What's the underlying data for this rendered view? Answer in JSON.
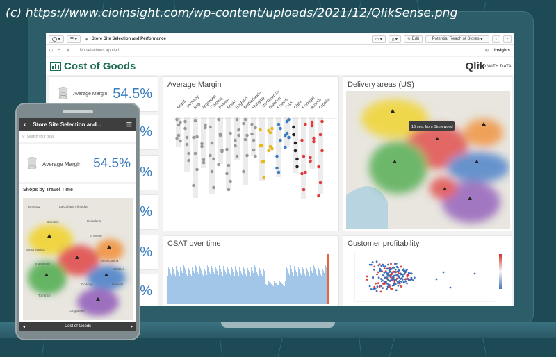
{
  "caption": "(c) https://www.cioinsight.com/wp-content/uploads/2021/12/QlikSense.png",
  "toolbar": {
    "app_title": "Store Site Selection and Performance",
    "edit_label": "Edit",
    "sheet_selector": "Potential Reach of Stores",
    "insights_label": "Insights"
  },
  "selection_bar": {
    "status": "No selections applied"
  },
  "sheet": {
    "title": "Cost of Goods",
    "brand": "Qlik",
    "tagline": "LEAD WITH DATA"
  },
  "kpis": [
    {
      "label": "Average Margin",
      "value": "54.5%"
    },
    {
      "label": "",
      "value": "%"
    },
    {
      "label": "",
      "value": "%"
    },
    {
      "label": "",
      "value": "%"
    },
    {
      "label": "",
      "value": "%"
    },
    {
      "label": "",
      "value": "%"
    }
  ],
  "panels": {
    "average_margin": {
      "title": "Average Margin",
      "countries": [
        "Brazil",
        "Germany",
        "Italy",
        "Argentina",
        "Uruguay",
        "France",
        "Spain",
        "England",
        "Netherlands",
        "Hungary",
        "Czechoslovakia",
        "Sweden",
        "Poland",
        "USA",
        "Chile",
        "Portugal",
        "Austria",
        "Croatia"
      ]
    },
    "delivery_areas": {
      "title": "Delivery areas (US)",
      "tooltip": "16 min. from Stonewood"
    },
    "csat": {
      "title": "CSAT over time"
    },
    "customer_profitability": {
      "title": "Customer profitability"
    }
  },
  "phone": {
    "header_title": "Store Site Selection and...",
    "search_placeholder": "Search your data",
    "kpi_label": "Average Margin",
    "kpi_value": "54.5%",
    "map_title": "Shops by Travel Time",
    "footer_label": "Cost of Goods",
    "map_places": [
      "Burbank",
      "La Cañada Flintridge",
      "Glendale",
      "Pasadena",
      "El Monte",
      "West Covina",
      "Inglewood",
      "Torrance",
      "Long Beach",
      "Santa Monica",
      "Whittier",
      "Norwalk",
      "Downey"
    ]
  },
  "colors": {
    "background": "#1d4a55",
    "title_green": "#1a6d4f",
    "kpi_blue": "#3a7cc0",
    "zone_yellow": "#f2d21a",
    "zone_red": "#e03c3c",
    "zone_orange": "#f28a2e",
    "zone_green": "#45a844",
    "zone_blue": "#3c78c8",
    "zone_purple": "#8b52b8"
  }
}
